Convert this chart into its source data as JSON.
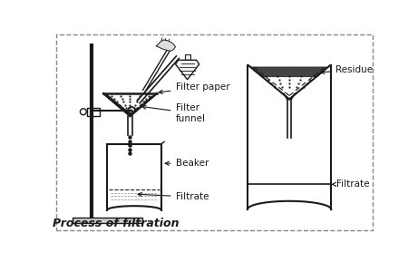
{
  "title": "Process of filtration",
  "labels": {
    "filter_paper": "Filter paper",
    "filter_funnel": "Filter\nfunnel",
    "beaker": "Beaker",
    "filtrate_left": "Filtrate",
    "residue": "Residue",
    "filtrate_right": "Filtrate"
  },
  "bg_color": "#ffffff",
  "line_color": "#1a1a1a",
  "title_fontsize": 9,
  "label_fontsize": 7.5
}
